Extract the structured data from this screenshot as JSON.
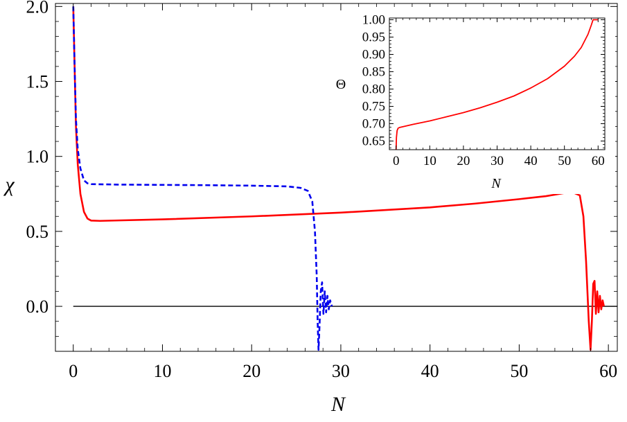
{
  "chart_data": [
    {
      "type": "line",
      "xlabel": "N",
      "ylabel": "χ",
      "xlim": [
        -2,
        61
      ],
      "ylim": [
        -0.3,
        2.02
      ],
      "xticks": [
        0,
        10,
        20,
        30,
        40,
        50,
        60
      ],
      "yticks": [
        0.0,
        0.5,
        1.0,
        1.5,
        2.0
      ],
      "xtick_labels": [
        "0",
        "10",
        "20",
        "30",
        "40",
        "50",
        "60"
      ],
      "ytick_labels": [
        "0.0",
        "0.5",
        "1.0",
        "1.5",
        "2.0"
      ],
      "reference_line_y": 0,
      "grid": false,
      "series": [
        {
          "color": "#ff0000",
          "style": "solid",
          "points": [
            [
              0,
              2.0
            ],
            [
              0.15,
              1.6
            ],
            [
              0.3,
              1.2
            ],
            [
              0.5,
              0.95
            ],
            [
              0.8,
              0.75
            ],
            [
              1.2,
              0.63
            ],
            [
              1.6,
              0.585
            ],
            [
              2.0,
              0.572
            ],
            [
              3,
              0.57
            ],
            [
              10,
              0.58
            ],
            [
              20,
              0.6
            ],
            [
              30,
              0.625
            ],
            [
              40,
              0.66
            ],
            [
              45,
              0.685
            ],
            [
              50,
              0.715
            ],
            [
              53,
              0.735
            ],
            [
              55,
              0.755
            ],
            [
              56,
              0.76
            ],
            [
              56.8,
              0.74
            ],
            [
              57.2,
              0.6
            ],
            [
              57.5,
              0.3
            ],
            [
              57.8,
              -0.1
            ],
            [
              58.0,
              -0.29
            ],
            [
              58.15,
              -0.1
            ],
            [
              58.3,
              0.15
            ],
            [
              58.45,
              0.17
            ],
            [
              58.6,
              -0.05
            ],
            [
              58.75,
              0.1
            ],
            [
              58.9,
              -0.04
            ],
            [
              59.05,
              0.07
            ],
            [
              59.2,
              -0.02
            ],
            [
              59.35,
              0.04
            ],
            [
              59.5,
              0.0
            ]
          ]
        },
        {
          "color": "#0000ee",
          "style": "dashed",
          "points": [
            [
              0,
              2.0
            ],
            [
              0.15,
              1.6
            ],
            [
              0.3,
              1.25
            ],
            [
              0.5,
              1.05
            ],
            [
              0.8,
              0.92
            ],
            [
              1.2,
              0.84
            ],
            [
              1.6,
              0.82
            ],
            [
              2.0,
              0.815
            ],
            [
              5,
              0.812
            ],
            [
              10,
              0.81
            ],
            [
              15,
              0.808
            ],
            [
              20,
              0.805
            ],
            [
              24,
              0.8
            ],
            [
              25.5,
              0.79
            ],
            [
              26.3,
              0.77
            ],
            [
              26.8,
              0.7
            ],
            [
              27.1,
              0.5
            ],
            [
              27.3,
              0.2
            ],
            [
              27.4,
              -0.1
            ],
            [
              27.5,
              -0.29
            ],
            [
              27.6,
              -0.15
            ],
            [
              27.75,
              0.1
            ],
            [
              27.9,
              0.16
            ],
            [
              28.05,
              -0.05
            ],
            [
              28.2,
              0.1
            ],
            [
              28.35,
              -0.04
            ],
            [
              28.5,
              0.07
            ],
            [
              28.65,
              -0.02
            ],
            [
              28.8,
              0.04
            ],
            [
              29.0,
              0.0
            ]
          ]
        }
      ]
    },
    {
      "type": "line",
      "xlabel": "N",
      "ylabel": "Θ",
      "xlim": [
        -2,
        62
      ],
      "ylim": [
        0.625,
        1.005
      ],
      "xticks": [
        0,
        10,
        20,
        30,
        40,
        50,
        60
      ],
      "yticks": [
        0.65,
        0.7,
        0.75,
        0.8,
        0.85,
        0.9,
        0.95,
        1.0
      ],
      "xtick_labels": [
        "0",
        "10",
        "20",
        "30",
        "40",
        "50",
        "60"
      ],
      "ytick_labels": [
        "0.65",
        "0.70",
        "0.75",
        "0.80",
        "0.85",
        "0.90",
        "0.95",
        "1.00"
      ],
      "grid": false,
      "series": [
        {
          "color": "#ff0000",
          "style": "solid",
          "points": [
            [
              0,
              0.625
            ],
            [
              0.1,
              0.66
            ],
            [
              0.3,
              0.68
            ],
            [
              0.6,
              0.687
            ],
            [
              1,
              0.689
            ],
            [
              5,
              0.698
            ],
            [
              10,
              0.708
            ],
            [
              15,
              0.72
            ],
            [
              20,
              0.732
            ],
            [
              25,
              0.746
            ],
            [
              30,
              0.762
            ],
            [
              35,
              0.78
            ],
            [
              40,
              0.803
            ],
            [
              45,
              0.83
            ],
            [
              50,
              0.866
            ],
            [
              53,
              0.895
            ],
            [
              55,
              0.92
            ],
            [
              57,
              0.958
            ],
            [
              58,
              0.985
            ],
            [
              58.5,
              1.0
            ],
            [
              60,
              1.0
            ]
          ]
        }
      ]
    }
  ]
}
